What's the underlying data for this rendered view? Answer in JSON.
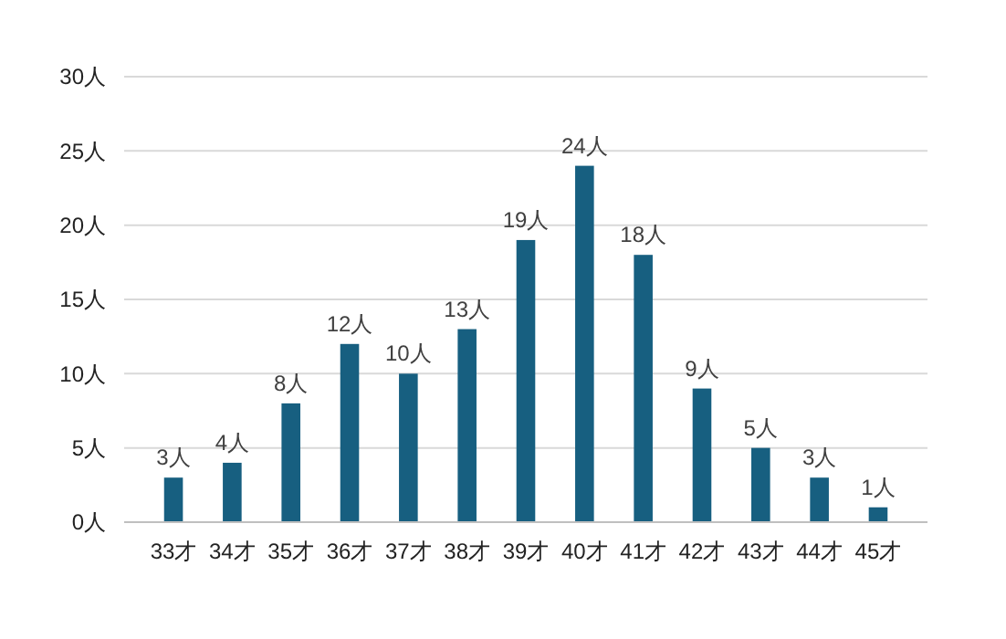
{
  "chart_data": {
    "type": "bar",
    "categories": [
      "33才",
      "34才",
      "35才",
      "36才",
      "37才",
      "38才",
      "39才",
      "40才",
      "41才",
      "42才",
      "43才",
      "44才",
      "45才"
    ],
    "values": [
      3,
      4,
      8,
      12,
      10,
      13,
      19,
      24,
      18,
      9,
      5,
      3,
      1
    ],
    "value_labels": [
      "3人",
      "4人",
      "8人",
      "12人",
      "10人",
      "13人",
      "19人",
      "24人",
      "18人",
      "9人",
      "5人",
      "3人",
      "1人"
    ],
    "color": "#175f80",
    "ylim": [
      0,
      30
    ],
    "yticks": [
      {
        "value": 0,
        "label": "0人"
      },
      {
        "value": 5,
        "label": "5人"
      },
      {
        "value": 10,
        "label": "10人"
      },
      {
        "value": 15,
        "label": "15人"
      },
      {
        "value": 20,
        "label": "20人"
      },
      {
        "value": 25,
        "label": "25人"
      },
      {
        "value": 30,
        "label": "30人"
      }
    ],
    "grid": "y"
  }
}
